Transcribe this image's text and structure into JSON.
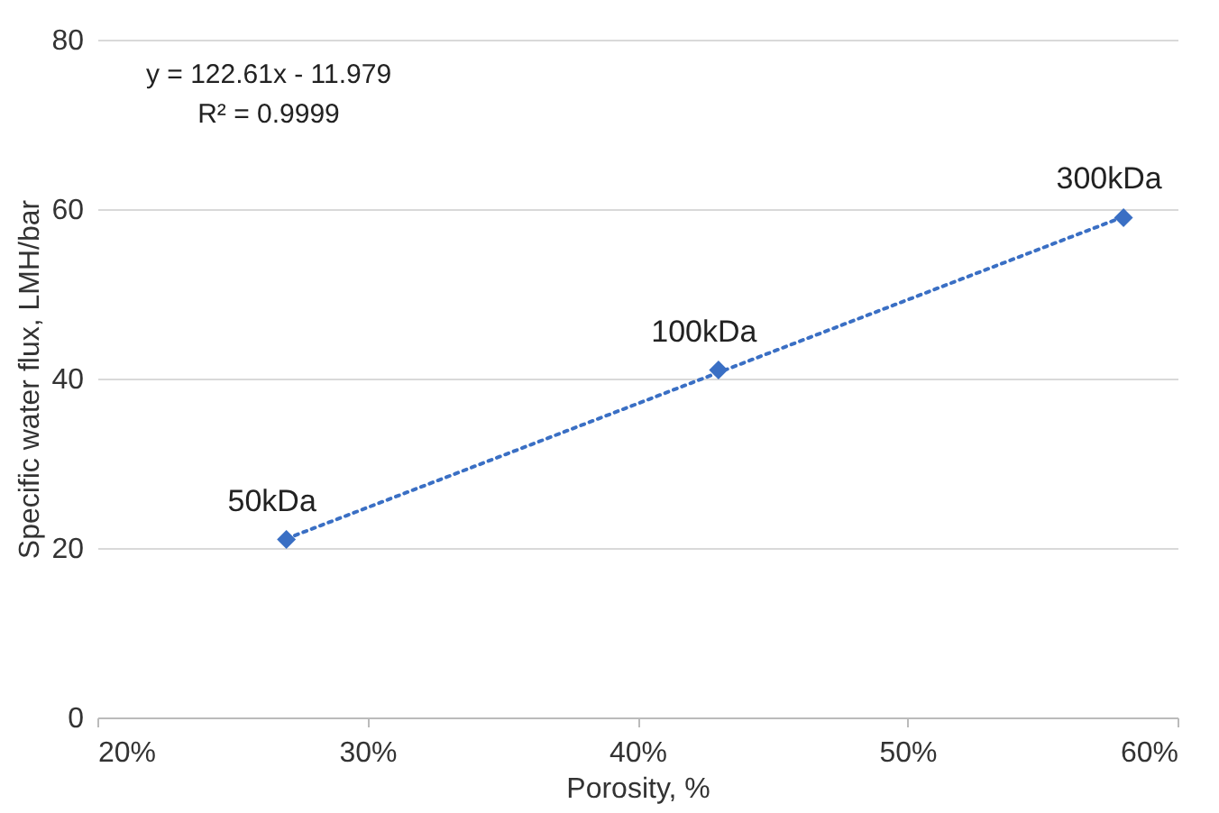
{
  "chart_data": {
    "type": "scatter",
    "xlabel": "Porosity, %",
    "ylabel": "Specific water flux, LMH/bar",
    "x": [
      0.27,
      0.43,
      0.58
    ],
    "series": [
      {
        "color": "#3a6fc4",
        "values": [
          21,
          41,
          59
        ],
        "marker": "diamond"
      },
      {
        "type": "line",
        "color": "#3a6fc4",
        "x": [
          0.27,
          0.58
        ],
        "values": [
          21.1,
          59.1
        ],
        "line_style": "dotted",
        "marker": "none"
      }
    ],
    "xlim": [
      0.2,
      0.6
    ],
    "xticks": [
      {
        "value": 0.2,
        "label": "20%"
      },
      {
        "value": 0.3,
        "label": "30%"
      },
      {
        "value": 0.4,
        "label": "40%"
      },
      {
        "value": 0.5,
        "label": "50%"
      },
      {
        "value": 0.6,
        "label": "60%"
      }
    ],
    "ylim": [
      0,
      80
    ],
    "yticks": [
      0,
      20,
      40,
      60,
      80
    ],
    "grid": "y",
    "annotations": [
      "y = 122.61x - 11.979",
      "R² = 0.9999",
      {
        "text": "50kDa",
        "x": 0.27,
        "y": 21
      },
      {
        "text": "100kDa",
        "x": 0.43,
        "y": 41
      },
      {
        "text": "300kDa",
        "x": 0.58,
        "y": 59
      }
    ]
  }
}
